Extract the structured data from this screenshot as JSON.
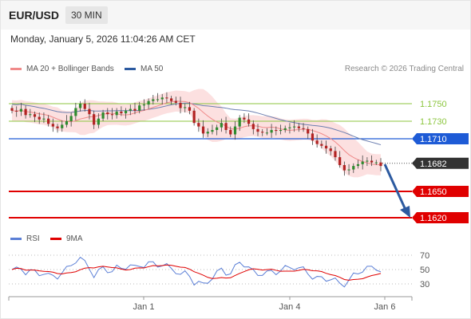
{
  "header": {
    "symbol": "EUR/USD",
    "timeframe": "30 MIN",
    "datetime": "Monday, January 5, 2026 11:04:26 AM CET"
  },
  "legend": {
    "ma20_label": "MA 20 + Bollinger Bands",
    "ma20_color": "#f08a8a",
    "ma50_label": "MA 50",
    "ma50_color": "#2c5aa0"
  },
  "credit": "Research © 2026 Trading Central",
  "rsi_legend": {
    "rsi_label": "RSI",
    "rsi_color": "#5b7fd6",
    "ma9_label": "9MA",
    "ma9_color": "#e00000"
  },
  "price_levels": [
    {
      "label": "1.1750",
      "value": 1.175,
      "kind": "green"
    },
    {
      "label": "1.1730",
      "value": 1.173,
      "kind": "green"
    },
    {
      "label": "1.1710",
      "value": 1.171,
      "kind": "blue"
    },
    {
      "label": "1.1682",
      "value": 1.1682,
      "kind": "current"
    },
    {
      "label": "1.1650",
      "value": 1.165,
      "kind": "red"
    },
    {
      "label": "1.1620",
      "value": 1.162,
      "kind": "red"
    }
  ],
  "level_colors": {
    "green": "#8cc63f",
    "blue": "#1e5bd6",
    "current": "#333333",
    "red": "#e00000",
    "arrow": "#2c5aa0"
  },
  "rsi_levels": [
    "70",
    "50",
    "30"
  ],
  "x_axis_labels": [
    "Jan 1",
    "Jan 4",
    "Jan 6"
  ],
  "chart_data": {
    "type": "candlestick",
    "price_range": [
      1.1615,
      1.18
    ],
    "close": [
      1.1742,
      1.1741,
      1.1744,
      1.1737,
      1.1738,
      1.1735,
      1.1732,
      1.1733,
      1.1727,
      1.1724,
      1.1722,
      1.1726,
      1.173,
      1.1736,
      1.1745,
      1.175,
      1.1744,
      1.1738,
      1.1726,
      1.1733,
      1.174,
      1.1738,
      1.1737,
      1.1741,
      1.1739,
      1.1742,
      1.1744,
      1.1742,
      1.1748,
      1.1749,
      1.1753,
      1.1755,
      1.1755,
      1.1757,
      1.1756,
      1.1753,
      1.1751,
      1.1745,
      1.1746,
      1.1742,
      1.1728,
      1.1724,
      1.1716,
      1.1718,
      1.172,
      1.1723,
      1.1728,
      1.172,
      1.1715,
      1.1724,
      1.1734,
      1.1732,
      1.1727,
      1.1721,
      1.1718,
      1.1717,
      1.1717,
      1.172,
      1.1719,
      1.172,
      1.1722,
      1.1723,
      1.1724,
      1.1722,
      1.1721,
      1.1716,
      1.1708,
      1.1704,
      1.1702,
      1.1699,
      1.1696,
      1.1689,
      1.168,
      1.1674,
      1.1675,
      1.1679,
      1.1681,
      1.1684,
      1.1685,
      1.1683,
      1.1683,
      1.1679
    ],
    "upper_band_range": [
      1.171,
      1.1768
    ],
    "lower_band_range": [
      1.1668,
      1.1742
    ],
    "rsi_range": [
      20,
      80
    ]
  }
}
